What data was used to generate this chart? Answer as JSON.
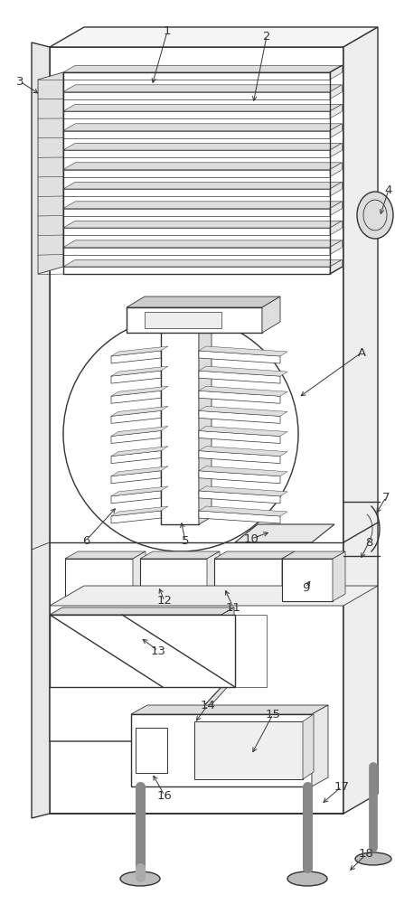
{
  "figure_width": 4.37,
  "figure_height": 10.0,
  "bg_color": "#ffffff",
  "lc": "#333333",
  "lw_main": 1.0,
  "lw_thin": 0.6,
  "lw_thick": 1.4
}
